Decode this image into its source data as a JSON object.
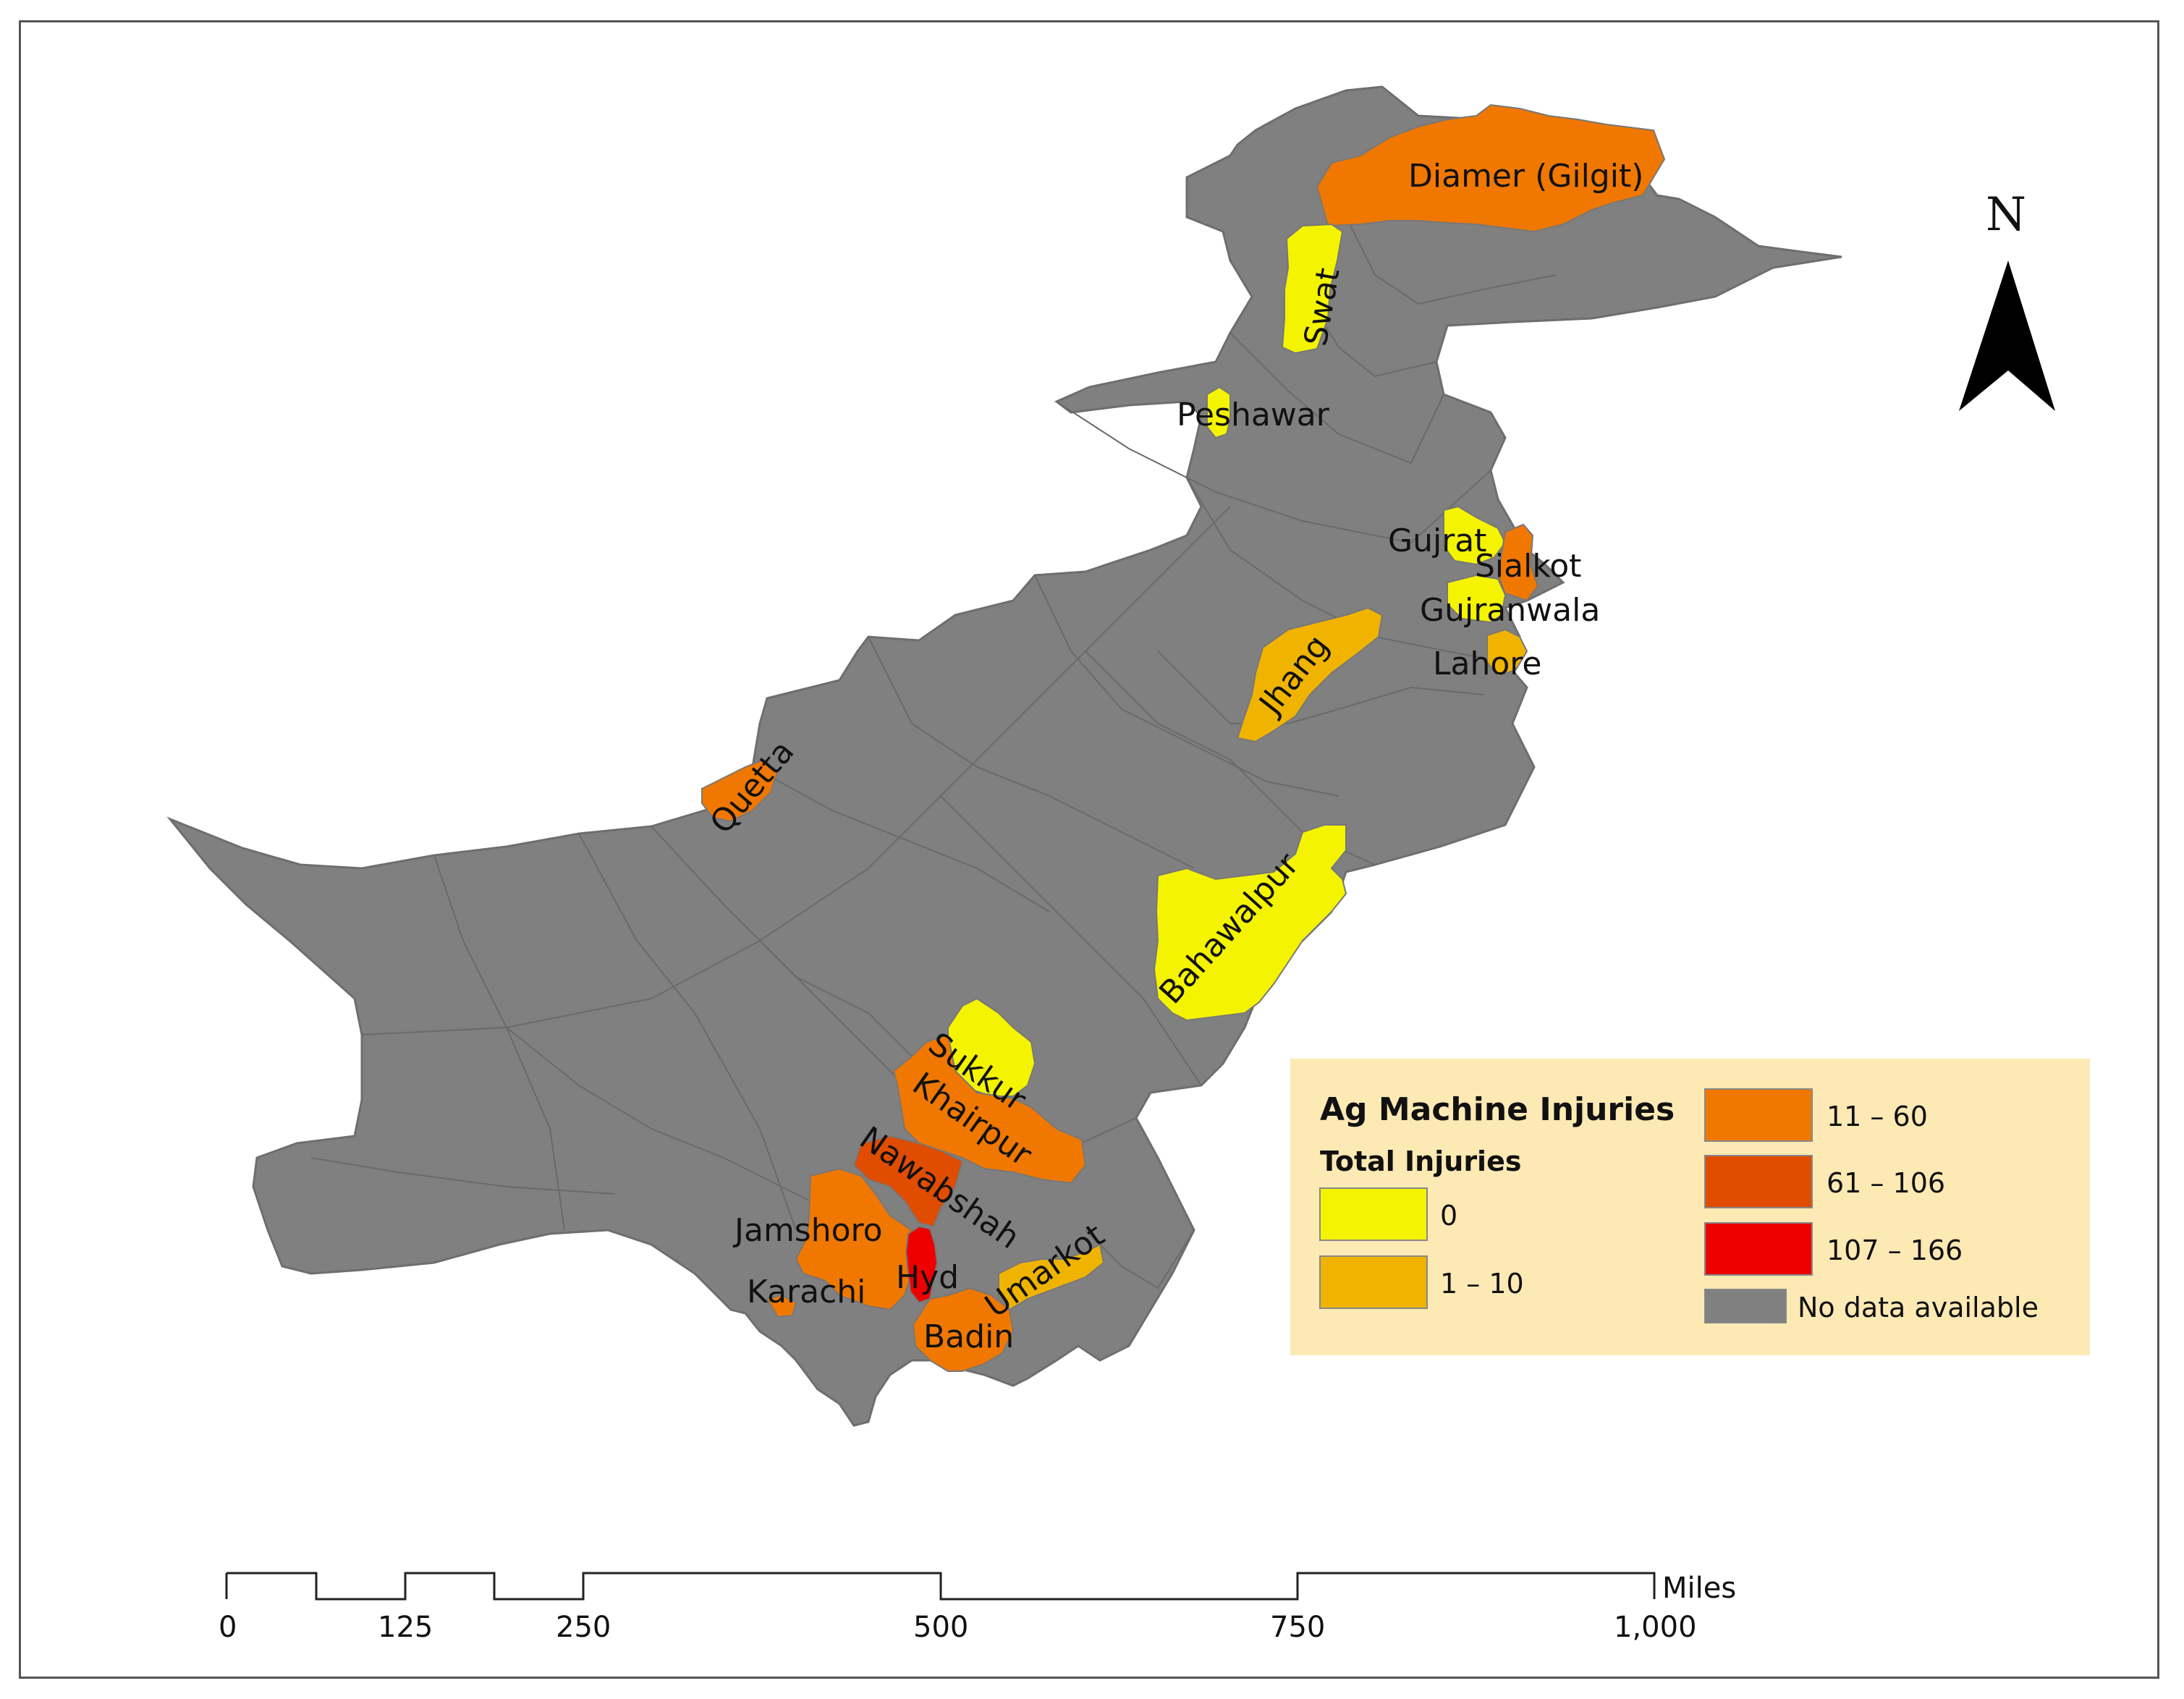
{
  "map": {
    "north_label": "N",
    "districts": [
      {
        "name": "Diamer (Gilgit)",
        "class": "11 – 60"
      },
      {
        "name": "Swat",
        "class": "0"
      },
      {
        "name": "Peshawar",
        "class": "0"
      },
      {
        "name": "Gujrat",
        "class": "0"
      },
      {
        "name": "Sialkot",
        "class": "11 – 60"
      },
      {
        "name": "Gujranwala",
        "class": "0"
      },
      {
        "name": "Jhang",
        "class": "1 – 10"
      },
      {
        "name": "Lahore",
        "class": "1 – 10"
      },
      {
        "name": "Quetta",
        "class": "11 – 60"
      },
      {
        "name": "Bahawalpur",
        "class": "0"
      },
      {
        "name": "Sukkur",
        "class": "0"
      },
      {
        "name": "Khairpur",
        "class": "11 – 60"
      },
      {
        "name": "Nawabshah",
        "class": "61 – 106"
      },
      {
        "name": "Jamshoro",
        "class": "11 – 60"
      },
      {
        "name": "Karachi",
        "class": "11 – 60"
      },
      {
        "name": "Hyd",
        "class": "107 – 166"
      },
      {
        "name": "Umarkot",
        "class": "1 – 10"
      },
      {
        "name": "Badin",
        "class": "11 – 60"
      }
    ]
  },
  "legend": {
    "title": "Ag Machine Injuries",
    "subtitle": "Total Injuries",
    "items": [
      {
        "label": "0",
        "color": "#f4f400"
      },
      {
        "label": "1 – 10",
        "color": "#f0b400"
      },
      {
        "label": "11 – 60",
        "color": "#f07800"
      },
      {
        "label": "61 – 106",
        "color": "#e04c00"
      },
      {
        "label": "107 – 166",
        "color": "#ee0000"
      },
      {
        "label": "No data available",
        "color": "#808080"
      }
    ],
    "background": "#fde9b4"
  },
  "scale_bar": {
    "unit": "Miles",
    "ticks": [
      "0",
      "125",
      "250",
      "500",
      "750",
      "1,000"
    ]
  }
}
